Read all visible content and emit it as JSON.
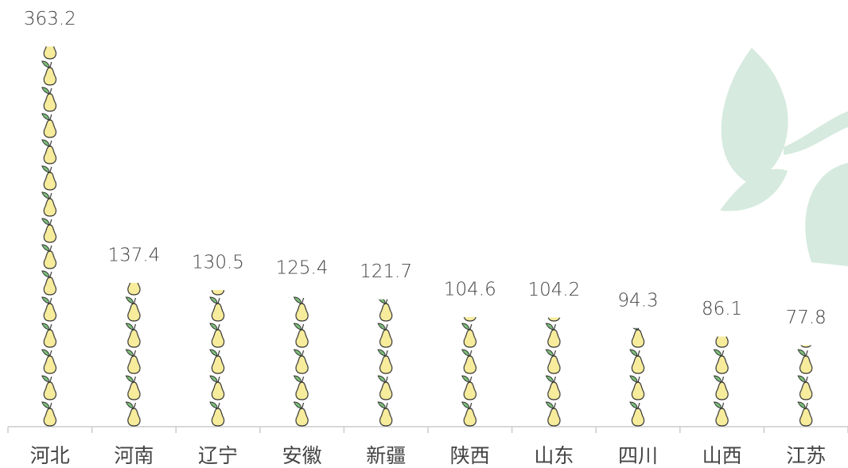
{
  "chart_data": {
    "type": "pictorial-bar",
    "categories": [
      "河北",
      "河南",
      "辽宁",
      "安徽",
      "新疆",
      "陕西",
      "山东",
      "四川",
      "山西",
      "江苏"
    ],
    "values": [
      363.2,
      137.4,
      130.5,
      125.4,
      121.7,
      104.6,
      104.2,
      94.3,
      86.1,
      77.8
    ],
    "color": "#f7ec9c",
    "ylim": [
      0,
      400
    ]
  }
}
